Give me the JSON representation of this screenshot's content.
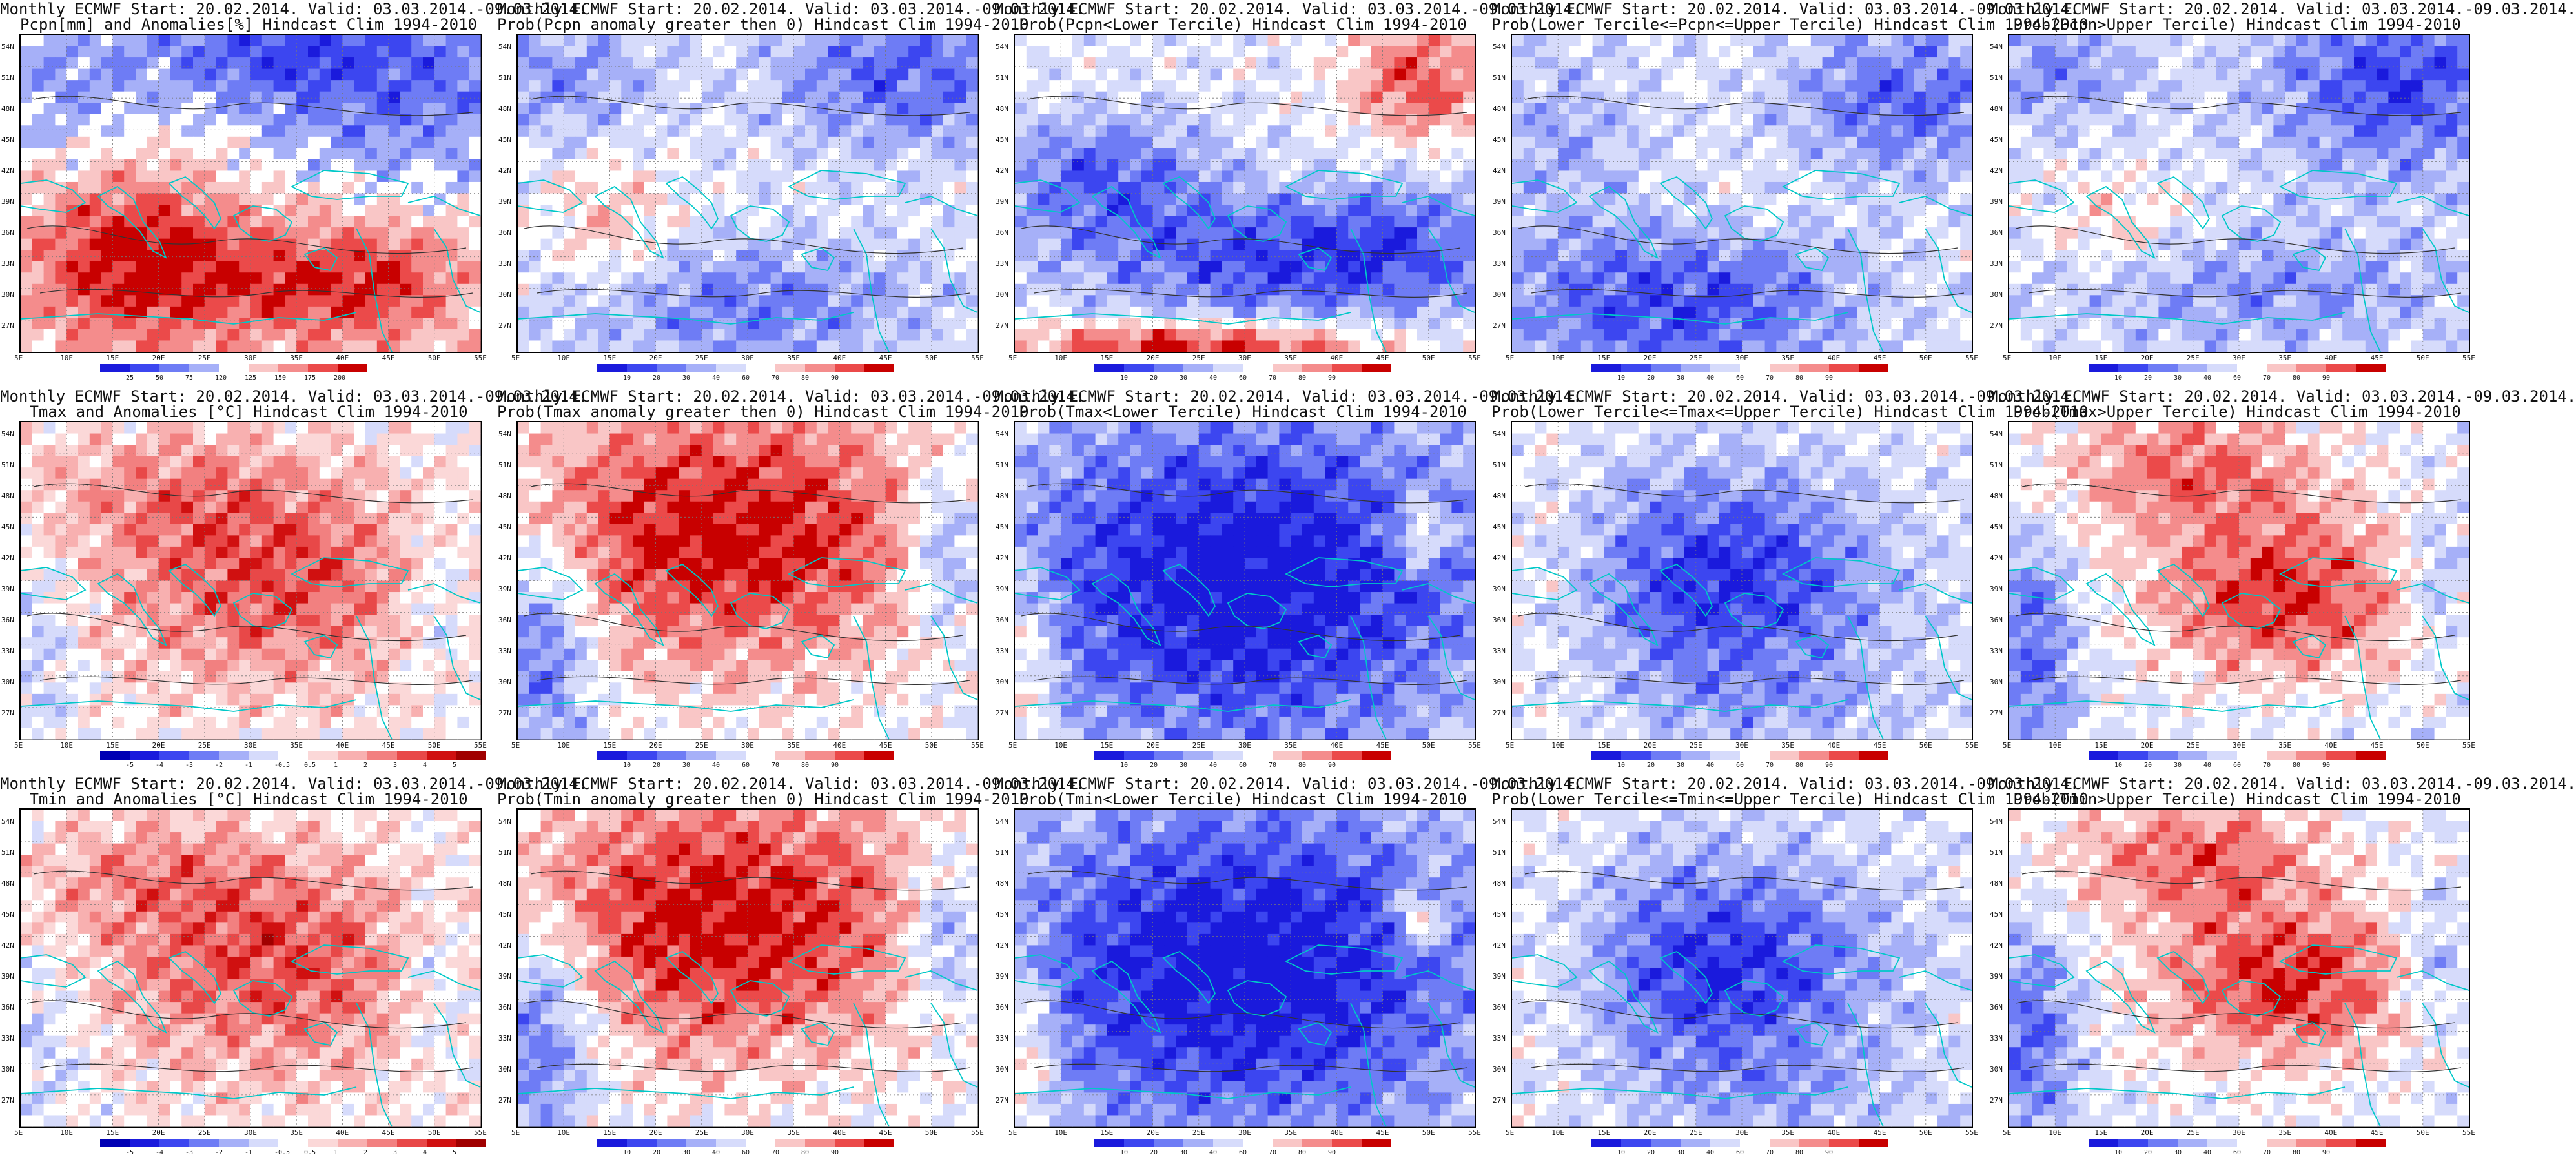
{
  "figure": {
    "rows": [
      {
        "variable": "Pcpn",
        "panels": [
          {
            "title_line1": "Monthly ECMWF Start: 20.02.2014. Valid: 03.03.2014.-09.03.2014.",
            "title_line2": "Pcpn[mm] and Anomalies[%] Hindcast Clim 1994-2010",
            "kind": "anom_pcpn",
            "pattern": "pcpn_anom"
          },
          {
            "title_line1": "Monthly ECMWF Start: 20.02.2014. Valid: 03.03.2014.-09.03.2014.",
            "title_line2": "Prob(Pcpn anomaly greater then 0) Hindcast Clim 1994-2010",
            "kind": "prob",
            "pattern": "pcpn_p0"
          },
          {
            "title_line1": "Monthly ECMWF Start: 20.02.2014. Valid: 03.03.2014.-09.03.2014.",
            "title_line2": "Prob(Pcpn<Lower Tercile) Hindcast Clim 1994-2010",
            "kind": "prob",
            "pattern": "pcpn_low"
          },
          {
            "title_line1": "Monthly ECMWF Start: 20.02.2014. Valid: 03.03.2014.-09.03.2014.",
            "title_line2": "Prob(Lower Tercile<=Pcpn<=Upper Tercile) Hindcast Clim 1994-2010",
            "kind": "prob",
            "pattern": "pcpn_mid"
          },
          {
            "title_line1": "Monthly ECMWF Start: 20.02.2014. Valid: 03.03.2014.-09.03.2014.",
            "title_line2": "Prob(Pcpn>Upper Tercile) Hindcast Clim 1994-2010",
            "kind": "prob",
            "pattern": "pcpn_up"
          }
        ]
      },
      {
        "variable": "Tmax",
        "panels": [
          {
            "title_line1": "Monthly ECMWF Start: 20.02.2014. Valid: 03.03.2014.-09.03.2014.",
            "title_line2": "Tmax and Anomalies [°C] Hindcast Clim 1994-2010",
            "kind": "anom_t",
            "pattern": "t_anom"
          },
          {
            "title_line1": "Monthly ECMWF Start: 20.02.2014. Valid: 03.03.2014.-09.03.2014.",
            "title_line2": "Prob(Tmax anomaly greater then 0) Hindcast Clim 1994-2010",
            "kind": "prob",
            "pattern": "t_p0"
          },
          {
            "title_line1": "Monthly ECMWF Start: 20.02.2014. Valid: 03.03.2014.-09.03.2014.",
            "title_line2": "Prob(Tmax<Lower Tercile) Hindcast Clim 1994-2010",
            "kind": "prob",
            "pattern": "t_low"
          },
          {
            "title_line1": "Monthly ECMWF Start: 20.02.2014. Valid: 03.03.2014.-09.03.2014.",
            "title_line2": "Prob(Lower Tercile<=Tmax<=Upper Tercile) Hindcast Clim 1994-2010",
            "kind": "prob",
            "pattern": "t_mid"
          },
          {
            "title_line1": "Monthly ECMWF Start: 20.02.2014. Valid: 03.03.2014.-09.03.2014.",
            "title_line2": "Prob(Tmax>Upper Tercile) Hindcast Clim 1994-2010",
            "kind": "prob",
            "pattern": "t_up"
          }
        ]
      },
      {
        "variable": "Tmin",
        "panels": [
          {
            "title_line1": "Monthly ECMWF Start: 20.02.2014. Valid: 03.03.2014.-09.03.2014.",
            "title_line2": "Tmin and Anomalies [°C] Hindcast Clim 1994-2010",
            "kind": "anom_t",
            "pattern": "t_anom"
          },
          {
            "title_line1": "Monthly ECMWF Start: 20.02.2014. Valid: 03.03.2014.-09.03.2014.",
            "title_line2": "Prob(Tmin anomaly greater then 0) Hindcast Clim 1994-2010",
            "kind": "prob",
            "pattern": "t_p0"
          },
          {
            "title_line1": "Monthly ECMWF Start: 20.02.2014. Valid: 03.03.2014.-09.03.2014.",
            "title_line2": "Prob(Tmin<Lower Tercile) Hindcast Clim 1994-2010",
            "kind": "prob",
            "pattern": "t_low"
          },
          {
            "title_line1": "Monthly ECMWF Start: 20.02.2014. Valid: 03.03.2014.-09.03.2014.",
            "title_line2": "Prob(Lower Tercile<=Tmin<=Upper Tercile) Hindcast Clim 1994-2010",
            "kind": "prob",
            "pattern": "t_mid"
          },
          {
            "title_line1": "Monthly ECMWF Start: 20.02.2014. Valid: 03.03.2014.-09.03.2014.",
            "title_line2": "Prob(Tmin>Upper Tercile) Hindcast Clim 1994-2010",
            "kind": "prob",
            "pattern": "t_up"
          }
        ]
      }
    ],
    "lat_labels": [
      "54N",
      "51N",
      "48N",
      "45N",
      "42N",
      "39N",
      "36N",
      "33N",
      "30N",
      "27N"
    ],
    "lon_labels": [
      "5E",
      "10E",
      "15E",
      "20E",
      "25E",
      "30E",
      "35E",
      "40E",
      "45E",
      "50E",
      "55E"
    ],
    "colorbars": {
      "prob": {
        "labels": [
          "10",
          "20",
          "30",
          "40",
          "60",
          "70",
          "80",
          "90"
        ],
        "colors": [
          "#1a1adc",
          "#3c46f0",
          "#6e7cf5",
          "#a6b0f8",
          "#d6dbfb",
          "#ffffff",
          "#f9c6c6",
          "#f48c8c",
          "#eb4a4a",
          "#c80000"
        ]
      },
      "anom_t": {
        "labels": [
          "-5",
          "-4",
          "-3",
          "-2",
          "-1",
          "-0.5",
          "0.5",
          "1",
          "2",
          "3",
          "4",
          "5"
        ],
        "colors": [
          "#0000b4",
          "#1a1adc",
          "#3c46f0",
          "#6e7cf5",
          "#a6b0f8",
          "#d6dbfb",
          "#ffffff",
          "#fbd8d8",
          "#f8b0b0",
          "#f28080",
          "#e84848",
          "#d01010",
          "#a00000"
        ]
      },
      "anom_pcpn": {
        "labels": [
          "25",
          "50",
          "75",
          "120",
          "125",
          "150",
          "175",
          "200"
        ],
        "colors": [
          "#1a1adc",
          "#3c46f0",
          "#6e7cf5",
          "#a6b0f8",
          "#ffffff",
          "#f9c6c6",
          "#f48c8c",
          "#eb4a4a",
          "#c80000"
        ]
      }
    }
  }
}
